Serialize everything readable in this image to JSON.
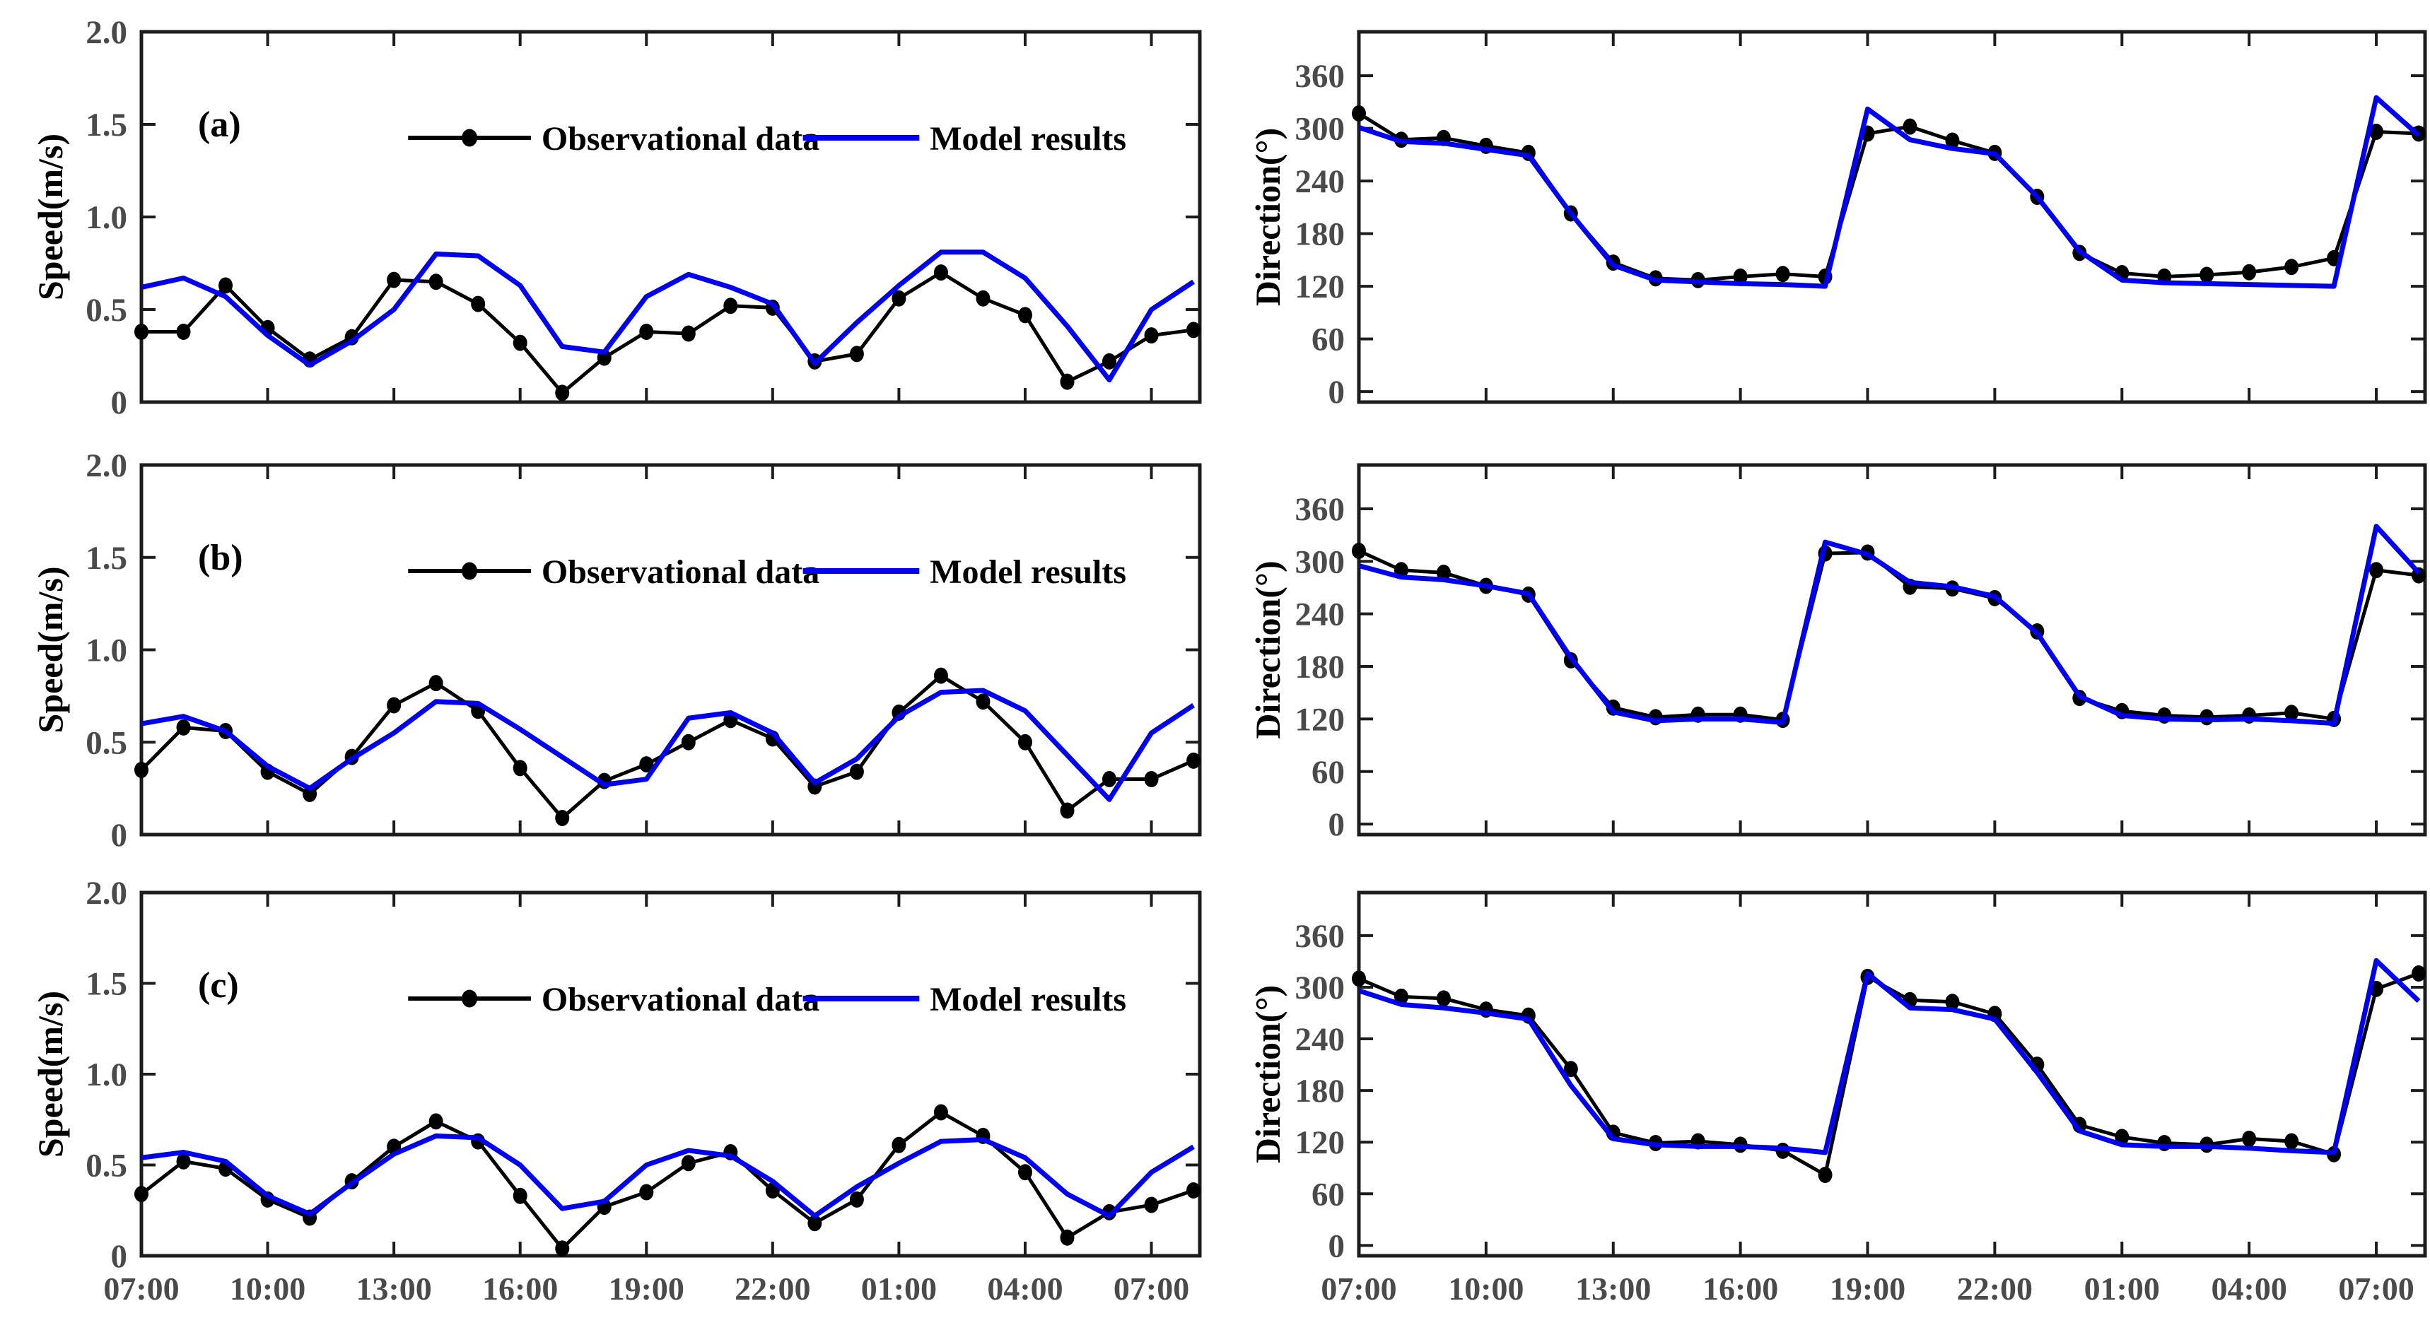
{
  "figure": {
    "background": "#ffffff",
    "colors": {
      "obs": "#000000",
      "model": "#0000ee",
      "axis": "#1c1c1c",
      "tick_text": "#4a4a4a"
    },
    "legend": {
      "obs_label": "Observational data",
      "model_label": "Model results"
    },
    "panel_labels": [
      "(a)",
      "(b)",
      "(c)"
    ],
    "ylabel_speed": "Speed(m/s)",
    "ylabel_direction": "Direction(°)"
  },
  "chart_data": [
    {
      "id": "panel-a-speed",
      "type": "line",
      "title": "(a)",
      "ylabel": "Speed(m/s)",
      "xlabel": "",
      "x_hours_start": "07:00",
      "x_step_hours": 1,
      "xlim": [
        0,
        25.15
      ],
      "ylim": [
        0,
        2
      ],
      "grid": false,
      "xticks": [
        0,
        3,
        6,
        9,
        12,
        15,
        18,
        21,
        24
      ],
      "xtick_labels": [
        "07:00",
        "10:00",
        "13:00",
        "16:00",
        "19:00",
        "22:00",
        "01:00",
        "04:00",
        "07:00"
      ],
      "show_xtick_labels": false,
      "yticks": [
        0,
        0.5,
        1.0,
        1.5,
        2.0
      ],
      "ytick_labels": [
        "0",
        "0.5",
        "1.0",
        "1.5",
        "2.0"
      ],
      "legend_visible": true,
      "legend_position": "top-center-inside",
      "series": [
        {
          "name": "Observational data",
          "color": "#000000",
          "marker": "dot",
          "values": [
            0.38,
            0.38,
            0.63,
            0.4,
            0.23,
            0.35,
            0.66,
            0.65,
            0.53,
            0.32,
            0.05,
            0.24,
            0.38,
            0.37,
            0.52,
            0.51,
            0.22,
            0.26,
            0.56,
            0.7,
            0.56,
            0.47,
            0.11,
            0.22,
            0.36,
            0.39
          ]
        },
        {
          "name": "Model results",
          "color": "#0000ee",
          "marker": "none",
          "values": [
            0.62,
            0.67,
            0.57,
            0.36,
            0.2,
            0.33,
            0.5,
            0.8,
            0.79,
            0.63,
            0.3,
            0.27,
            0.57,
            0.69,
            0.62,
            0.53,
            0.21,
            0.43,
            0.63,
            0.81,
            0.81,
            0.67,
            0.41,
            0.12,
            0.5,
            0.65
          ]
        }
      ]
    },
    {
      "id": "panel-a-direction",
      "type": "line",
      "title": "",
      "ylabel": "Direction(°)",
      "xlabel": "",
      "x_hours_start": "07:00",
      "x_step_hours": 1,
      "xlim": [
        0,
        25.15
      ],
      "ylim": [
        -12,
        410
      ],
      "grid": false,
      "xticks": [
        0,
        3,
        6,
        9,
        12,
        15,
        18,
        21,
        24
      ],
      "xtick_labels": [
        "07:00",
        "10:00",
        "13:00",
        "16:00",
        "19:00",
        "22:00",
        "01:00",
        "04:00",
        "07:00"
      ],
      "show_xtick_labels": false,
      "yticks": [
        0,
        60,
        120,
        180,
        240,
        300,
        360
      ],
      "ytick_labels": [
        "0",
        "60",
        "120",
        "180",
        "240",
        "300",
        "360"
      ],
      "legend_visible": false,
      "legend_position": "none",
      "series": [
        {
          "name": "Observational data",
          "color": "#000000",
          "marker": "dot",
          "values": [
            317,
            287,
            289,
            280,
            272,
            203,
            147,
            129,
            127,
            131,
            134,
            131,
            294,
            302,
            286,
            272,
            222,
            158,
            135,
            131,
            133,
            136,
            142,
            152,
            296,
            294
          ]
        },
        {
          "name": "Model results",
          "color": "#0000ee",
          "marker": "none",
          "values": [
            301,
            285,
            283,
            276,
            269,
            203,
            144,
            127,
            125,
            123,
            122,
            120,
            322,
            287,
            277,
            271,
            222,
            160,
            127,
            124,
            123,
            122,
            121,
            120,
            335,
            292
          ]
        }
      ]
    },
    {
      "id": "panel-b-speed",
      "type": "line",
      "title": "(b)",
      "ylabel": "Speed(m/s)",
      "xlabel": "",
      "x_hours_start": "07:00",
      "x_step_hours": 1,
      "xlim": [
        0,
        25.15
      ],
      "ylim": [
        0,
        2
      ],
      "grid": false,
      "xticks": [
        0,
        3,
        6,
        9,
        12,
        15,
        18,
        21,
        24
      ],
      "xtick_labels": [
        "07:00",
        "10:00",
        "13:00",
        "16:00",
        "19:00",
        "22:00",
        "01:00",
        "04:00",
        "07:00"
      ],
      "show_xtick_labels": false,
      "yticks": [
        0,
        0.5,
        1.0,
        1.5,
        2.0
      ],
      "ytick_labels": [
        "0",
        "0.5",
        "1.0",
        "1.5",
        "2.0"
      ],
      "legend_visible": true,
      "legend_position": "top-center-inside",
      "series": [
        {
          "name": "Observational data",
          "color": "#000000",
          "marker": "dot",
          "values": [
            0.35,
            0.58,
            0.56,
            0.34,
            0.22,
            0.42,
            0.7,
            0.82,
            0.67,
            0.36,
            0.09,
            0.29,
            0.38,
            0.5,
            0.62,
            0.52,
            0.26,
            0.34,
            0.66,
            0.86,
            0.72,
            0.5,
            0.13,
            0.3,
            0.3,
            0.4
          ]
        },
        {
          "name": "Model results",
          "color": "#0000ee",
          "marker": "none",
          "values": [
            0.6,
            0.64,
            0.56,
            0.37,
            0.25,
            0.41,
            0.55,
            0.72,
            0.71,
            0.57,
            0.42,
            0.27,
            0.3,
            0.63,
            0.66,
            0.55,
            0.28,
            0.41,
            0.64,
            0.77,
            0.78,
            0.67,
            0.43,
            0.19,
            0.55,
            0.7
          ]
        }
      ]
    },
    {
      "id": "panel-b-direction",
      "type": "line",
      "title": "",
      "ylabel": "Direction(°)",
      "xlabel": "",
      "x_hours_start": "07:00",
      "x_step_hours": 1,
      "xlim": [
        0,
        25.15
      ],
      "ylim": [
        -12,
        410
      ],
      "grid": false,
      "xticks": [
        0,
        3,
        6,
        9,
        12,
        15,
        18,
        21,
        24
      ],
      "xtick_labels": [
        "07:00",
        "10:00",
        "13:00",
        "16:00",
        "19:00",
        "22:00",
        "01:00",
        "04:00",
        "07:00"
      ],
      "show_xtick_labels": false,
      "yticks": [
        0,
        60,
        120,
        180,
        240,
        300,
        360
      ],
      "ytick_labels": [
        "0",
        "60",
        "120",
        "180",
        "240",
        "300",
        "360"
      ],
      "legend_visible": false,
      "legend_position": "none",
      "series": [
        {
          "name": "Observational data",
          "color": "#000000",
          "marker": "dot",
          "values": [
            312,
            290,
            287,
            272,
            262,
            187,
            133,
            122,
            125,
            125,
            119,
            309,
            310,
            271,
            269,
            258,
            220,
            144,
            129,
            124,
            122,
            124,
            127,
            120,
            290,
            284
          ]
        },
        {
          "name": "Model results",
          "color": "#0000ee",
          "marker": "none",
          "values": [
            295,
            282,
            279,
            272,
            263,
            190,
            128,
            118,
            120,
            120,
            116,
            322,
            308,
            276,
            271,
            260,
            218,
            146,
            124,
            120,
            119,
            120,
            118,
            115,
            340,
            287
          ]
        }
      ]
    },
    {
      "id": "panel-c-speed",
      "type": "line",
      "title": "(c)",
      "ylabel": "Speed(m/s)",
      "xlabel": "",
      "x_hours_start": "07:00",
      "x_step_hours": 1,
      "xlim": [
        0,
        25.15
      ],
      "ylim": [
        0,
        2
      ],
      "grid": false,
      "xticks": [
        0,
        3,
        6,
        9,
        12,
        15,
        18,
        21,
        24
      ],
      "xtick_labels": [
        "07:00",
        "10:00",
        "13:00",
        "16:00",
        "19:00",
        "22:00",
        "01:00",
        "04:00",
        "07:00"
      ],
      "show_xtick_labels": true,
      "yticks": [
        0,
        0.5,
        1.0,
        1.5,
        2.0
      ],
      "ytick_labels": [
        "0",
        "0.5",
        "1.0",
        "1.5",
        "2.0"
      ],
      "legend_visible": true,
      "legend_position": "top-center-inside",
      "series": [
        {
          "name": "Observational data",
          "color": "#000000",
          "marker": "dot",
          "values": [
            0.34,
            0.52,
            0.48,
            0.31,
            0.21,
            0.41,
            0.6,
            0.74,
            0.63,
            0.33,
            0.04,
            0.27,
            0.35,
            0.51,
            0.57,
            0.36,
            0.18,
            0.31,
            0.61,
            0.79,
            0.66,
            0.46,
            0.1,
            0.24,
            0.28,
            0.36
          ]
        },
        {
          "name": "Model results",
          "color": "#0000ee",
          "marker": "none",
          "values": [
            0.54,
            0.57,
            0.52,
            0.33,
            0.23,
            0.4,
            0.56,
            0.66,
            0.65,
            0.5,
            0.26,
            0.3,
            0.5,
            0.58,
            0.55,
            0.41,
            0.22,
            0.38,
            0.51,
            0.63,
            0.64,
            0.54,
            0.34,
            0.22,
            0.46,
            0.6
          ]
        }
      ]
    },
    {
      "id": "panel-c-direction",
      "type": "line",
      "title": "",
      "ylabel": "Direction(°)",
      "xlabel": "",
      "x_hours_start": "07:00",
      "x_step_hours": 1,
      "xlim": [
        0,
        25.15
      ],
      "ylim": [
        -12,
        410
      ],
      "grid": false,
      "xticks": [
        0,
        3,
        6,
        9,
        12,
        15,
        18,
        21,
        24
      ],
      "xtick_labels": [
        "07:00",
        "10:00",
        "13:00",
        "16:00",
        "19:00",
        "22:00",
        "01:00",
        "04:00",
        "07:00"
      ],
      "show_xtick_labels": true,
      "yticks": [
        0,
        60,
        120,
        180,
        240,
        300,
        360
      ],
      "ytick_labels": [
        "0",
        "60",
        "120",
        "180",
        "240",
        "300",
        "360"
      ],
      "legend_visible": false,
      "legend_position": "none",
      "series": [
        {
          "name": "Observational data",
          "color": "#000000",
          "marker": "dot",
          "values": [
            310,
            289,
            287,
            274,
            267,
            205,
            131,
            119,
            121,
            117,
            110,
            82,
            312,
            285,
            283,
            269,
            210,
            140,
            126,
            119,
            117,
            124,
            121,
            106,
            298,
            316
          ]
        },
        {
          "name": "Model results",
          "color": "#0000ee",
          "marker": "none",
          "values": [
            296,
            280,
            276,
            270,
            263,
            186,
            124,
            117,
            115,
            115,
            113,
            108,
            316,
            276,
            274,
            263,
            201,
            133,
            117,
            115,
            115,
            113,
            110,
            108,
            331,
            284
          ]
        }
      ]
    }
  ]
}
